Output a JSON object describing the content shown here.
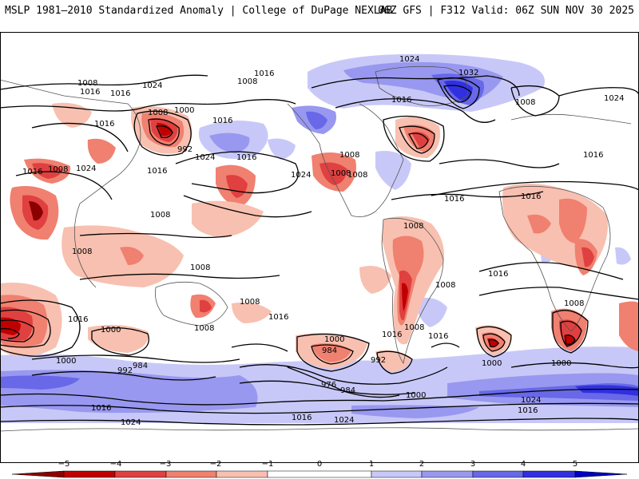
{
  "header": {
    "left_title": "MSLP 1981–2010 Standardized Anomaly | College of DuPage NEXLAB",
    "right_title": "06Z GFS | F312 Valid: 06Z SUN NOV 30 2025"
  },
  "map": {
    "anomaly_colors": {
      "neg5": "#8b0000",
      "neg4": "#c00000",
      "neg3": "#e04040",
      "neg2": "#f08070",
      "neg1": "#f8c0b0",
      "zero": "#ffffff",
      "pos1": "#c8c8f8",
      "pos2": "#9898f0",
      "pos3": "#6868e8",
      "pos4": "#3030e0",
      "pos5": "#0000c0"
    },
    "isobar_labels": [
      {
        "text": "1024",
        "id": "l1"
      },
      {
        "text": "1008",
        "id": "l2"
      },
      {
        "text": "1016",
        "id": "l3"
      },
      {
        "text": "1016",
        "id": "l4"
      },
      {
        "text": "1024",
        "id": "l5"
      },
      {
        "text": "1008",
        "id": "l6"
      },
      {
        "text": "1016",
        "id": "l7"
      },
      {
        "text": "1032",
        "id": "l8"
      },
      {
        "text": "1016",
        "id": "l9"
      },
      {
        "text": "1008",
        "id": "l10"
      },
      {
        "text": "1024",
        "id": "l11"
      },
      {
        "text": "1008",
        "id": "l12"
      },
      {
        "text": "1000",
        "id": "l13"
      },
      {
        "text": "1016",
        "id": "l14"
      },
      {
        "text": "992",
        "id": "l15"
      },
      {
        "text": "1016",
        "id": "l16"
      },
      {
        "text": "1024",
        "id": "l17"
      },
      {
        "text": "1016",
        "id": "l18"
      },
      {
        "text": "1024",
        "id": "l19"
      },
      {
        "text": "1016",
        "id": "l20"
      },
      {
        "text": "1008",
        "id": "l21"
      },
      {
        "text": "1024",
        "id": "l22"
      },
      {
        "text": "1016",
        "id": "l23"
      },
      {
        "text": "1008",
        "id": "l24"
      },
      {
        "text": "1016",
        "id": "l25"
      },
      {
        "text": "1016",
        "id": "l26"
      },
      {
        "text": "1008",
        "id": "l27"
      },
      {
        "text": "1008",
        "id": "l28"
      },
      {
        "text": "1008",
        "id": "l29"
      },
      {
        "text": "1016",
        "id": "l30"
      },
      {
        "text": "1008",
        "id": "l31"
      },
      {
        "text": "1008",
        "id": "l32"
      },
      {
        "text": "1016",
        "id": "l33"
      },
      {
        "text": "1008",
        "id": "l34"
      },
      {
        "text": "1000",
        "id": "l35"
      },
      {
        "text": "1008",
        "id": "l36"
      },
      {
        "text": "992",
        "id": "l37"
      },
      {
        "text": "984",
        "id": "l38"
      },
      {
        "text": "1008",
        "id": "l39"
      },
      {
        "text": "1000",
        "id": "l40"
      },
      {
        "text": "984",
        "id": "l41"
      },
      {
        "text": "992",
        "id": "l42"
      },
      {
        "text": "1008",
        "id": "l43"
      },
      {
        "text": "1016",
        "id": "l44"
      },
      {
        "text": "1000",
        "id": "l45"
      },
      {
        "text": "1000",
        "id": "l46"
      },
      {
        "text": "976",
        "id": "l47"
      },
      {
        "text": "984",
        "id": "l48"
      },
      {
        "text": "1000",
        "id": "l49"
      },
      {
        "text": "1008",
        "id": "l50"
      },
      {
        "text": "1016",
        "id": "l51"
      },
      {
        "text": "1016",
        "id": "l52"
      },
      {
        "text": "1008",
        "id": "l53"
      },
      {
        "text": "1000",
        "id": "l54"
      },
      {
        "text": "1016",
        "id": "l55"
      },
      {
        "text": "1024",
        "id": "l56"
      },
      {
        "text": "1024",
        "id": "l57"
      },
      {
        "text": "1000",
        "id": "l58"
      },
      {
        "text": "1016",
        "id": "l59"
      },
      {
        "text": "1024",
        "id": "l60"
      },
      {
        "text": "1016",
        "id": "l61"
      },
      {
        "text": "1016",
        "id": "l62"
      }
    ]
  },
  "colorbar": {
    "ticks": [
      "−5",
      "−4",
      "−3",
      "−2",
      "−1",
      "0",
      "1",
      "2",
      "3",
      "4",
      "5"
    ]
  }
}
